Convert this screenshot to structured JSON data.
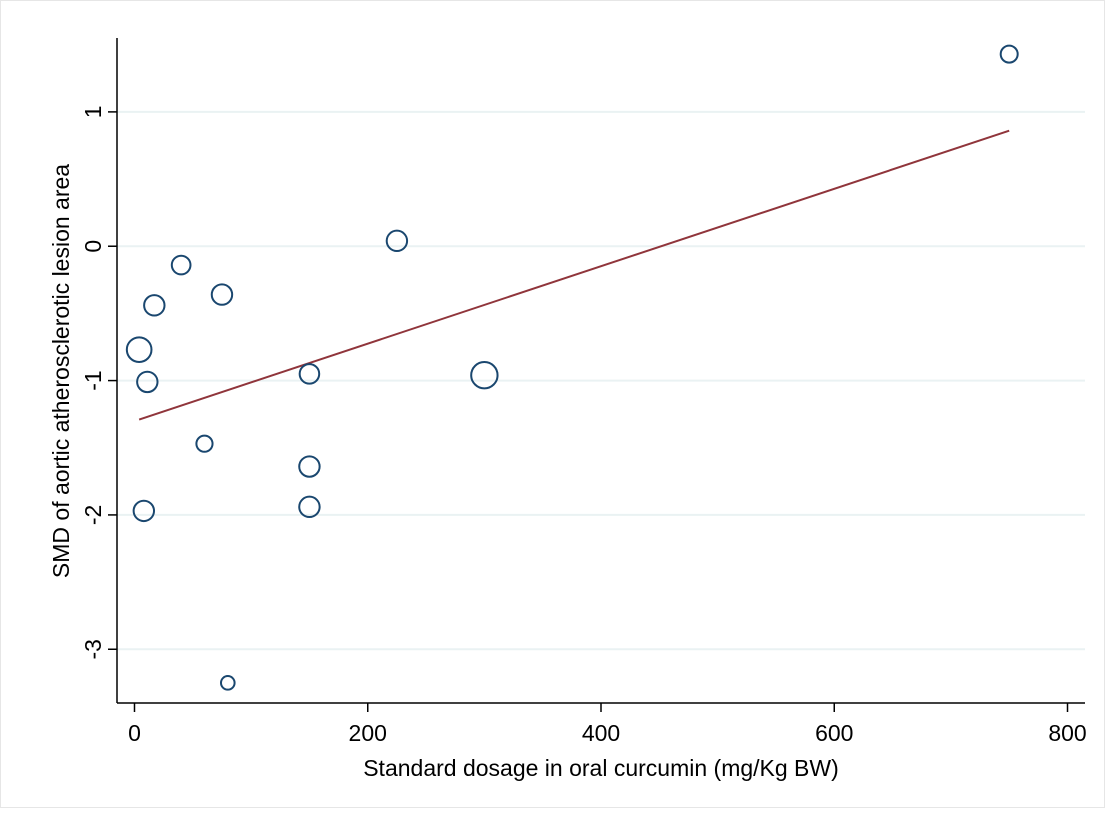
{
  "chart_data": {
    "type": "scatter",
    "title": "",
    "xlabel": "Standard dosage in oral curcumin (mg/Kg BW)",
    "ylabel": "SMD of aortic atherosclerotic lesion area",
    "xlim": [
      -15,
      815
    ],
    "ylim": [
      -3.4,
      1.55
    ],
    "xticks": [
      0,
      200,
      400,
      600,
      800
    ],
    "yticks": [
      -3,
      -2,
      -1,
      0,
      1
    ],
    "grid": true,
    "legend": "none",
    "colors": {
      "marker_edge": "#1a476f",
      "fit_line": "#90353b",
      "grid": "#eaf2f3",
      "axis": "#000000",
      "frame": "#e6e6e6"
    },
    "points": [
      {
        "x": 750,
        "y": 1.43,
        "w": 1.0
      },
      {
        "x": 225,
        "y": 0.04,
        "w": 1.2
      },
      {
        "x": 40,
        "y": -0.14,
        "w": 1.1
      },
      {
        "x": 75,
        "y": -0.36,
        "w": 1.2
      },
      {
        "x": 17,
        "y": -0.44,
        "w": 1.2
      },
      {
        "x": 4,
        "y": -0.77,
        "w": 1.45
      },
      {
        "x": 11,
        "y": -1.01,
        "w": 1.2
      },
      {
        "x": 150,
        "y": -0.95,
        "w": 1.15
      },
      {
        "x": 300,
        "y": -0.96,
        "w": 1.55
      },
      {
        "x": 60,
        "y": -1.47,
        "w": 0.95
      },
      {
        "x": 150,
        "y": -1.64,
        "w": 1.2
      },
      {
        "x": 8,
        "y": -1.97,
        "w": 1.2
      },
      {
        "x": 150,
        "y": -1.94,
        "w": 1.2
      },
      {
        "x": 80,
        "y": -3.25,
        "w": 0.8
      }
    ],
    "fit_line": {
      "x": [
        4,
        750
      ],
      "y": [
        -1.29,
        0.86
      ]
    }
  }
}
